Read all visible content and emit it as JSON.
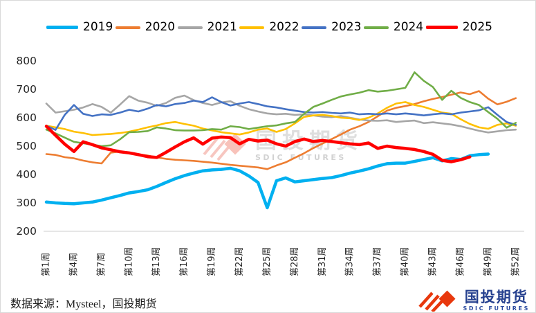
{
  "chart_data": {
    "type": "line",
    "title": "",
    "x_axis": {
      "tick_labels": [
        "第1周",
        "第4周",
        "第7周",
        "第10周",
        "第13周",
        "第16周",
        "第19周",
        "第22周",
        "第25周",
        "第28周",
        "第31周",
        "第34周",
        "第37周",
        "第40周",
        "第43周",
        "第46周",
        "第49周",
        "第52周"
      ],
      "tick_weeks": [
        1,
        4,
        7,
        10,
        13,
        16,
        19,
        22,
        25,
        28,
        31,
        34,
        37,
        40,
        43,
        46,
        49,
        52
      ],
      "weeks_total": 52
    },
    "y_axis": {
      "ticks": [
        800,
        700,
        600,
        500,
        400,
        300,
        200
      ],
      "min": 200,
      "max": 800
    },
    "grid": "off",
    "legend_position": "top",
    "series": [
      {
        "name": "2019",
        "color": "#00B0F0",
        "thick": true,
        "values": [
          303,
          300,
          298,
          297,
          300,
          303,
          310,
          318,
          326,
          335,
          340,
          346,
          358,
          372,
          385,
          396,
          405,
          413,
          416,
          418,
          422,
          413,
          395,
          372,
          283,
          378,
          388,
          374,
          378,
          382,
          386,
          389,
          396,
          405,
          412,
          420,
          430,
          438,
          440,
          440,
          446,
          453,
          459,
          448,
          456,
          453,
          466,
          470,
          472,
          null,
          null,
          null
        ]
      },
      {
        "name": "2020",
        "color": "#ED7D31",
        "thick": false,
        "values": [
          472,
          469,
          461,
          457,
          449,
          443,
          439,
          477,
          481,
          475,
          471,
          467,
          460,
          455,
          452,
          450,
          448,
          445,
          442,
          438,
          434,
          431,
          428,
          425,
          419,
          432,
          443,
          459,
          475,
          493,
          509,
          525,
          541,
          558,
          570,
          585,
          605,
          625,
          635,
          641,
          648,
          658,
          666,
          673,
          681,
          689,
          683,
          694,
          667,
          647,
          656,
          669
        ]
      },
      {
        "name": "2021",
        "color": "#A6A6A6",
        "thick": false,
        "values": [
          650,
          618,
          623,
          628,
          636,
          648,
          638,
          618,
          646,
          676,
          660,
          653,
          642,
          652,
          670,
          678,
          662,
          652,
          645,
          654,
          658,
          642,
          630,
          622,
          615,
          612,
          614,
          610,
          612,
          608,
          604,
          602,
          606,
          600,
          594,
          590,
          589,
          591,
          585,
          588,
          590,
          581,
          584,
          580,
          576,
          570,
          562,
          554,
          548,
          552,
          556,
          558
        ]
      },
      {
        "name": "2022",
        "color": "#FFC000",
        "thick": false,
        "values": [
          572,
          566,
          560,
          551,
          546,
          539,
          541,
          543,
          546,
          551,
          558,
          566,
          573,
          581,
          585,
          578,
          572,
          562,
          555,
          549,
          545,
          541,
          548,
          558,
          562,
          550,
          560,
          580,
          603,
          608,
          610,
          606,
          600,
          598,
          592,
          600,
          615,
          635,
          650,
          655,
          645,
          638,
          628,
          618,
          614,
          595,
          578,
          566,
          561,
          575,
          580,
          572
        ]
      },
      {
        "name": "2023",
        "color": "#4472C4",
        "thick": false,
        "values": [
          572,
          557,
          610,
          645,
          614,
          606,
          612,
          610,
          618,
          628,
          622,
          632,
          645,
          640,
          648,
          652,
          660,
          655,
          672,
          655,
          643,
          650,
          655,
          648,
          640,
          636,
          630,
          625,
          620,
          618,
          620,
          617,
          615,
          618,
          612,
          614,
          612,
          615,
          612,
          615,
          612,
          608,
          612,
          615,
          612,
          618,
          622,
          626,
          637,
          610,
          585,
          575
        ]
      },
      {
        "name": "2024",
        "color": "#70AD47",
        "thick": false,
        "values": [
          558,
          545,
          530,
          515,
          510,
          505,
          500,
          503,
          524,
          549,
          550,
          553,
          566,
          562,
          556,
          555,
          555,
          556,
          560,
          558,
          570,
          567,
          560,
          565,
          570,
          573,
          580,
          585,
          614,
          638,
          650,
          663,
          675,
          682,
          688,
          697,
          692,
          695,
          700,
          705,
          760,
          730,
          708,
          663,
          695,
          670,
          655,
          645,
          620,
          596,
          565,
          582
        ]
      },
      {
        "name": "2025",
        "color": "#FF0000",
        "thick": true,
        "values": [
          570,
          538,
          507,
          481,
          515,
          505,
          494,
          487,
          480,
          476,
          470,
          463,
          460,
          478,
          497,
          515,
          529,
          507,
          528,
          532,
          530,
          508,
          524,
          518,
          521,
          508,
          500,
          516,
          525,
          516,
          520,
          516,
          512,
          508,
          505,
          511,
          492,
          500,
          495,
          492,
          488,
          481,
          471,
          450,
          445,
          452,
          462,
          null,
          null,
          null,
          null,
          null
        ]
      }
    ]
  },
  "watermark": {
    "cn": "国投期货",
    "en": "SDIC FUTURES"
  },
  "footer": {
    "source": "数据来源：Mysteel，国投期货"
  },
  "logo": {
    "cn": "国投期货",
    "en": "SDIC FUTURES"
  }
}
